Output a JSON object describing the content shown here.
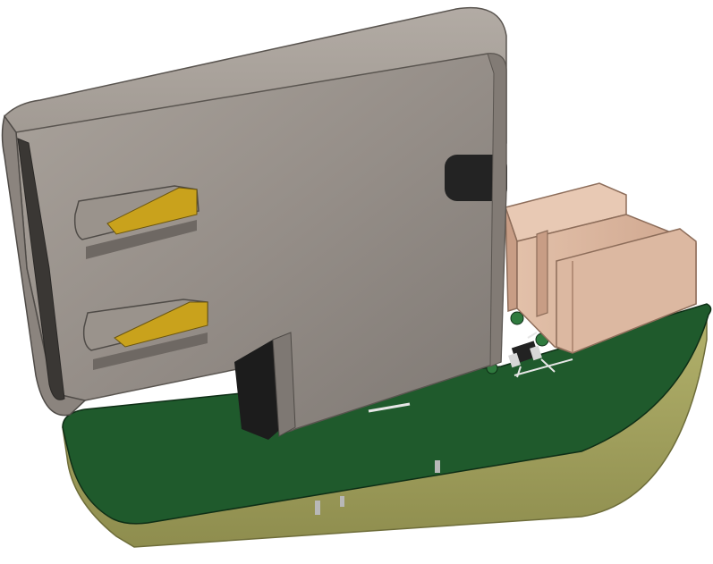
{
  "scene": {
    "subject": "usb-c-breakout-board-3d-render",
    "colors": {
      "background": "#ffffff",
      "shell_light": "#a49c95",
      "shell_mid": "#8a837d",
      "shell_dark": "#6f6963",
      "shell_edge": "#5a5550",
      "pcb_green": "#1f5a2c",
      "pcb_green_dark": "#184a23",
      "pcb_edge": "#a5a462",
      "pcb_edge_dark": "#8a8a4c",
      "gold": "#c9a21c",
      "connector": "#dcb7a0",
      "connector_dark": "#c29c86",
      "black": "#222222"
    }
  }
}
